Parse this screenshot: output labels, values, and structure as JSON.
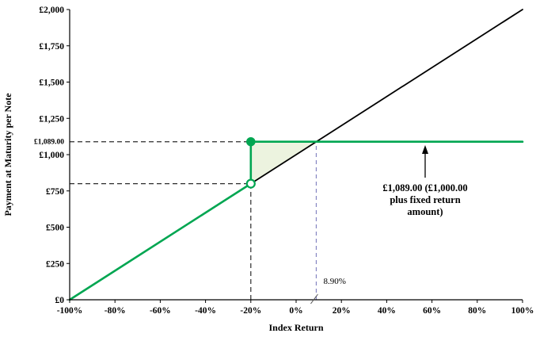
{
  "chart_data": {
    "type": "line",
    "title": "",
    "xlabel": "Index Return",
    "ylabel": "Payment at Maturity per Note",
    "xlim": [
      -100,
      100
    ],
    "ylim": [
      0,
      2000
    ],
    "grid": false,
    "legend": "none",
    "colors": {
      "payment_line": "#00a651",
      "index_line": "#000000",
      "breakeven_guide": "#8585c2",
      "guide_dash": "#2b2b2b",
      "shade_fill": "#ecf3df"
    },
    "y_ticks": [
      {
        "value": 0,
        "label": "£0"
      },
      {
        "value": 250,
        "label": "£250"
      },
      {
        "value": 500,
        "label": "£500"
      },
      {
        "value": 750,
        "label": "£750"
      },
      {
        "value": 1000,
        "label": "£1,000"
      },
      {
        "value": 1250,
        "label": "£1,250"
      },
      {
        "value": 1500,
        "label": "£1,500"
      },
      {
        "value": 1750,
        "label": "£1,750"
      },
      {
        "value": 2000,
        "label": "£2,000"
      }
    ],
    "special_y_tick": {
      "value": 1089,
      "label": "£1,089.00"
    },
    "x_ticks": [
      {
        "value": -100,
        "label": "-100%"
      },
      {
        "value": -80,
        "label": "-80%"
      },
      {
        "value": -60,
        "label": "-60%"
      },
      {
        "value": -40,
        "label": "-40%"
      },
      {
        "value": -20,
        "label": "-20%"
      },
      {
        "value": 0,
        "label": "0%"
      },
      {
        "value": 20,
        "label": "20%"
      },
      {
        "value": 40,
        "label": "40%"
      },
      {
        "value": 60,
        "label": "60%"
      },
      {
        "value": 80,
        "label": "80%"
      },
      {
        "value": 100,
        "label": "100%"
      }
    ],
    "series": [
      {
        "name": "index-return-line",
        "color": "#000000",
        "width": 1.8,
        "points": [
          [
            -100,
            0
          ],
          [
            100,
            2000
          ]
        ]
      },
      {
        "name": "payment-at-maturity-line",
        "color": "#00a651",
        "width": 2.6,
        "points": [
          [
            -100,
            0
          ],
          [
            -20,
            800
          ],
          [
            -20,
            1089
          ],
          [
            100,
            1089
          ]
        ]
      }
    ],
    "shaded_region": {
      "name": "fixed-return-gain-region",
      "fill": "#ecf3df",
      "points": [
        [
          -20,
          800
        ],
        [
          -20,
          1089
        ],
        [
          8.9,
          1089
        ]
      ]
    },
    "markers": [
      {
        "x": -20,
        "y": 800,
        "style": "open",
        "color": "#00a651",
        "name": "index-value-point"
      },
      {
        "x": -20,
        "y": 1089,
        "style": "filled",
        "color": "#00a651",
        "name": "payment-value-point"
      }
    ],
    "guide_lines": [
      {
        "name": "payment-level-guide",
        "type": "h",
        "y": 1089,
        "x1": -100,
        "x2": -20,
        "color": "#2b2b2b",
        "dash": "6 4"
      },
      {
        "name": "index-level-guide",
        "type": "h",
        "y": 800,
        "x1": -100,
        "x2": -20,
        "color": "#2b2b2b",
        "dash": "6 4"
      },
      {
        "name": "buffer-strike-guide",
        "type": "v",
        "x": -20,
        "y1": 0,
        "y2": 1089,
        "color": "#2b2b2b",
        "dash": "6 4"
      },
      {
        "name": "breakeven-guide",
        "type": "v",
        "x": 8.9,
        "y1": 0,
        "y2": 1089,
        "color": "#8585c2",
        "dash": "5 4"
      }
    ],
    "breakeven_label": {
      "text": "8.90%",
      "value": 8.9
    },
    "callout": {
      "lines": [
        "£1,089.00 (£1,000.00",
        "plus fixed return",
        "amount)"
      ]
    }
  }
}
